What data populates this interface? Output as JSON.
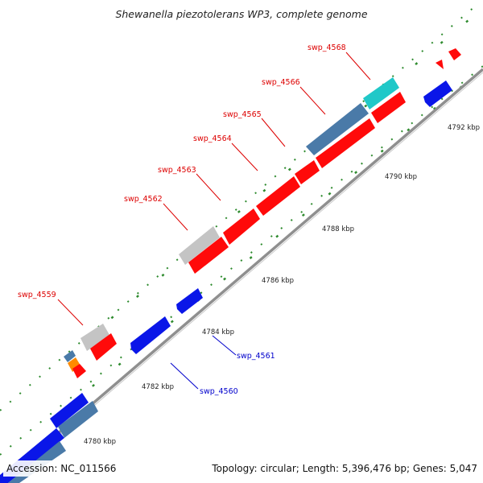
{
  "header": {
    "title": "Shewanella piezotolerans WP3, complete genome"
  },
  "footer": {
    "accession": "Accession: NC_011566",
    "summary": "Topology: circular; Length: 5,396,476 bp; Genes: 5,047"
  },
  "colors": {
    "background": "#ffffff",
    "backbone": "#8f8f8f",
    "tick": "#2e8b2e",
    "forward_gene": "#ff0a0a",
    "reverse_gene": "#0a16e8",
    "rna_gene": "#4a7aa8",
    "pseudo_gene": "#c4c4c4",
    "cyan_gene": "#20c8c8",
    "label_forward": "#dd0000",
    "label_reverse": "#0000cc"
  },
  "scale": {
    "unit": "kbp",
    "labels": [
      "4780 kbp",
      "4782 kbp",
      "4784 kbp",
      "4786 kbp",
      "4788 kbp",
      "4790 kbp",
      "4792 kbp"
    ]
  },
  "gene_labels": {
    "forward": [
      "swp_4559",
      "swp_4562",
      "swp_4563",
      "swp_4564",
      "swp_4565",
      "swp_4566",
      "swp_4568"
    ],
    "reverse": [
      "swp_4560",
      "swp_4561"
    ]
  }
}
